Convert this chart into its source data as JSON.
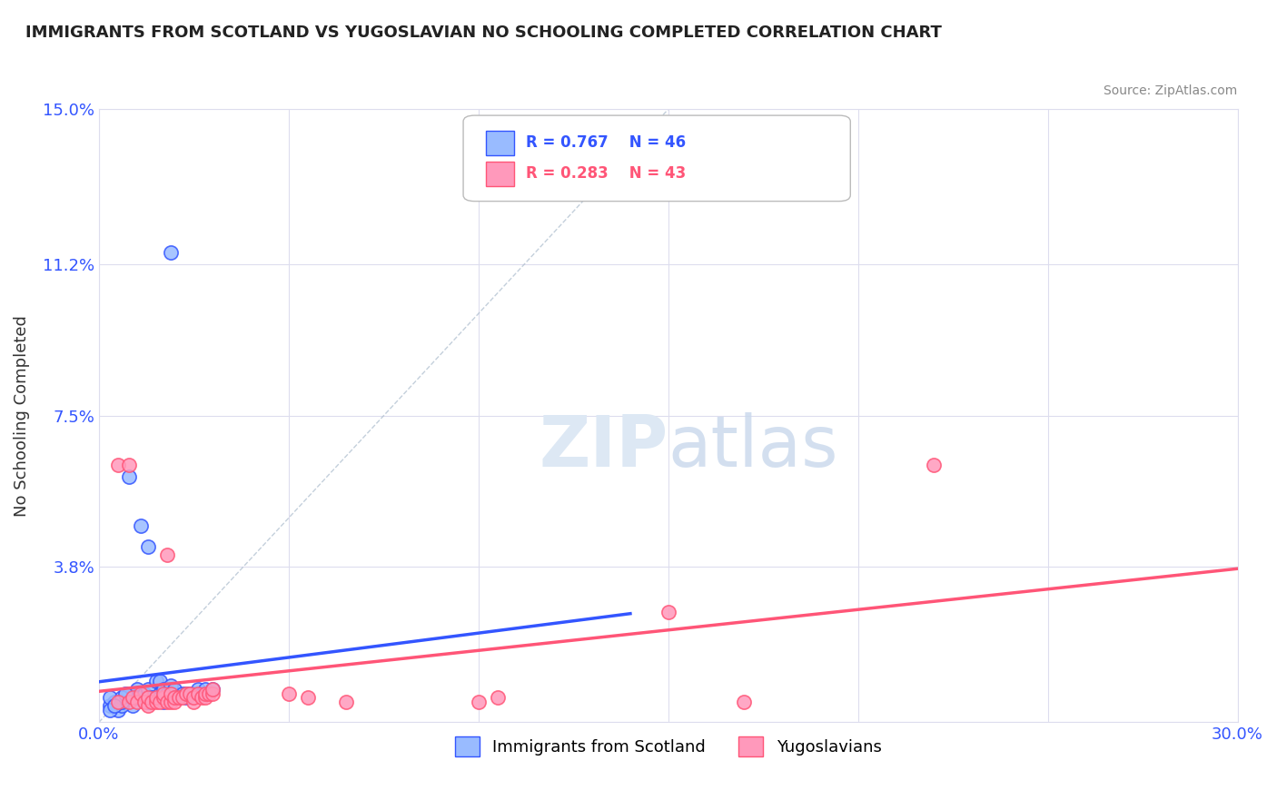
{
  "title": "IMMIGRANTS FROM SCOTLAND VS YUGOSLAVIAN NO SCHOOLING COMPLETED CORRELATION CHART",
  "source": "Source: ZipAtlas.com",
  "xlabel": "",
  "ylabel": "No Schooling Completed",
  "xlim": [
    0.0,
    0.3
  ],
  "ylim": [
    0.0,
    0.15
  ],
  "xticks": [
    0.0,
    0.05,
    0.1,
    0.15,
    0.2,
    0.25,
    0.3
  ],
  "xticklabels": [
    "0.0%",
    "",
    "",
    "",
    "",
    "",
    "30.0%"
  ],
  "yticks": [
    0.0,
    0.038,
    0.075,
    0.112,
    0.15
  ],
  "yticklabels": [
    "",
    "3.8%",
    "7.5%",
    "11.2%",
    "15.0%"
  ],
  "blue_r": 0.767,
  "blue_n": 46,
  "pink_r": 0.283,
  "pink_n": 43,
  "blue_color": "#99bbff",
  "pink_color": "#ff99bb",
  "blue_line_color": "#3355ff",
  "pink_line_color": "#ff5577",
  "blue_scatter": [
    [
      0.005,
      0.005
    ],
    [
      0.007,
      0.006
    ],
    [
      0.008,
      0.007
    ],
    [
      0.009,
      0.004
    ],
    [
      0.01,
      0.008
    ],
    [
      0.01,
      0.006
    ],
    [
      0.012,
      0.007
    ],
    [
      0.013,
      0.005
    ],
    [
      0.013,
      0.008
    ],
    [
      0.014,
      0.006
    ],
    [
      0.015,
      0.01
    ],
    [
      0.015,
      0.006
    ],
    [
      0.016,
      0.007
    ],
    [
      0.016,
      0.01
    ],
    [
      0.016,
      0.006
    ],
    [
      0.017,
      0.008
    ],
    [
      0.017,
      0.005
    ],
    [
      0.018,
      0.007
    ],
    [
      0.018,
      0.006
    ],
    [
      0.019,
      0.009
    ],
    [
      0.02,
      0.008
    ],
    [
      0.02,
      0.006
    ],
    [
      0.021,
      0.006
    ],
    [
      0.022,
      0.007
    ],
    [
      0.023,
      0.007
    ],
    [
      0.023,
      0.006
    ],
    [
      0.024,
      0.007
    ],
    [
      0.025,
      0.007
    ],
    [
      0.026,
      0.008
    ],
    [
      0.027,
      0.007
    ],
    [
      0.028,
      0.008
    ],
    [
      0.03,
      0.008
    ],
    [
      0.008,
      0.06
    ],
    [
      0.011,
      0.048
    ],
    [
      0.013,
      0.043
    ],
    [
      0.003,
      0.004
    ],
    [
      0.004,
      0.005
    ],
    [
      0.003,
      0.006
    ],
    [
      0.005,
      0.003
    ],
    [
      0.006,
      0.004
    ],
    [
      0.006,
      0.005
    ],
    [
      0.006,
      0.006
    ],
    [
      0.007,
      0.007
    ],
    [
      0.003,
      0.003
    ],
    [
      0.004,
      0.004
    ],
    [
      0.019,
      0.115
    ]
  ],
  "pink_scatter": [
    [
      0.005,
      0.005
    ],
    [
      0.008,
      0.005
    ],
    [
      0.009,
      0.006
    ],
    [
      0.01,
      0.005
    ],
    [
      0.011,
      0.007
    ],
    [
      0.012,
      0.005
    ],
    [
      0.013,
      0.004
    ],
    [
      0.013,
      0.006
    ],
    [
      0.014,
      0.005
    ],
    [
      0.015,
      0.005
    ],
    [
      0.015,
      0.006
    ],
    [
      0.016,
      0.005
    ],
    [
      0.017,
      0.006
    ],
    [
      0.017,
      0.007
    ],
    [
      0.018,
      0.005
    ],
    [
      0.019,
      0.005
    ],
    [
      0.019,
      0.007
    ],
    [
      0.02,
      0.005
    ],
    [
      0.02,
      0.006
    ],
    [
      0.021,
      0.006
    ],
    [
      0.022,
      0.006
    ],
    [
      0.023,
      0.007
    ],
    [
      0.024,
      0.007
    ],
    [
      0.025,
      0.005
    ],
    [
      0.025,
      0.006
    ],
    [
      0.026,
      0.007
    ],
    [
      0.027,
      0.006
    ],
    [
      0.028,
      0.006
    ],
    [
      0.028,
      0.007
    ],
    [
      0.029,
      0.007
    ],
    [
      0.03,
      0.007
    ],
    [
      0.03,
      0.008
    ],
    [
      0.005,
      0.063
    ],
    [
      0.008,
      0.063
    ],
    [
      0.018,
      0.041
    ],
    [
      0.22,
      0.063
    ],
    [
      0.15,
      0.027
    ],
    [
      0.1,
      0.005
    ],
    [
      0.105,
      0.006
    ],
    [
      0.17,
      0.005
    ],
    [
      0.05,
      0.007
    ],
    [
      0.055,
      0.006
    ],
    [
      0.065,
      0.005
    ]
  ],
  "background_color": "#ffffff",
  "grid_color": "#ddddee"
}
